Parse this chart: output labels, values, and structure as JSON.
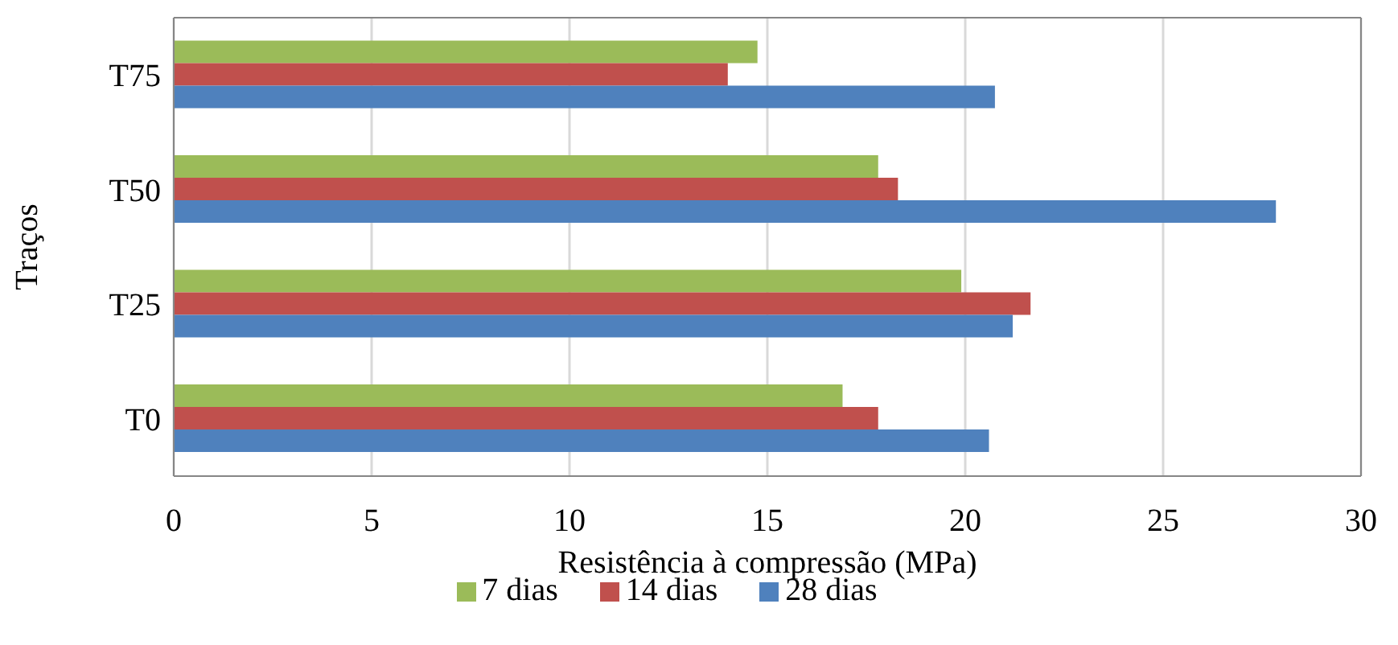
{
  "chart_data": {
    "type": "bar",
    "orientation": "horizontal",
    "xlabel": "Resistência à compressão (MPa)",
    "ylabel": "Traços",
    "categories": [
      "T75",
      "T50",
      "T25",
      "T0"
    ],
    "series": [
      {
        "name": "7 dias",
        "color": "#9bbb59",
        "values": [
          14.75,
          17.8,
          19.9,
          16.9
        ]
      },
      {
        "name": "14 dias",
        "color": "#c0504d",
        "values": [
          14.0,
          18.3,
          21.65,
          17.8
        ]
      },
      {
        "name": "28 dias",
        "color": "#4f81bd",
        "values": [
          20.75,
          27.85,
          21.2,
          20.6
        ]
      }
    ],
    "xlim": [
      0,
      30
    ],
    "xticks": [
      0,
      5,
      10,
      15,
      20,
      25,
      30
    ],
    "grid": "x",
    "legend": "bottom"
  }
}
